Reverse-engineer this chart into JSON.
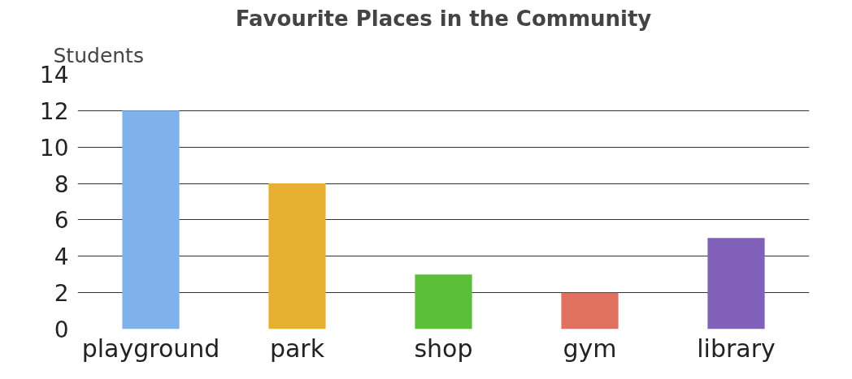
{
  "chart_data": {
    "type": "bar",
    "title": "Favourite Places in the Community",
    "ylabel": "Students",
    "categories": [
      "playground",
      "park",
      "shop",
      "gym",
      "library"
    ],
    "values": [
      12,
      8,
      3,
      2,
      5
    ],
    "colors": [
      "#7fb2ea",
      "#e8b030",
      "#5cbf3a",
      "#e07060",
      "#8060b8"
    ],
    "ylim": [
      0,
      14
    ],
    "yticks": [
      0,
      2,
      4,
      6,
      8,
      10,
      12,
      14
    ],
    "grid": "y"
  }
}
